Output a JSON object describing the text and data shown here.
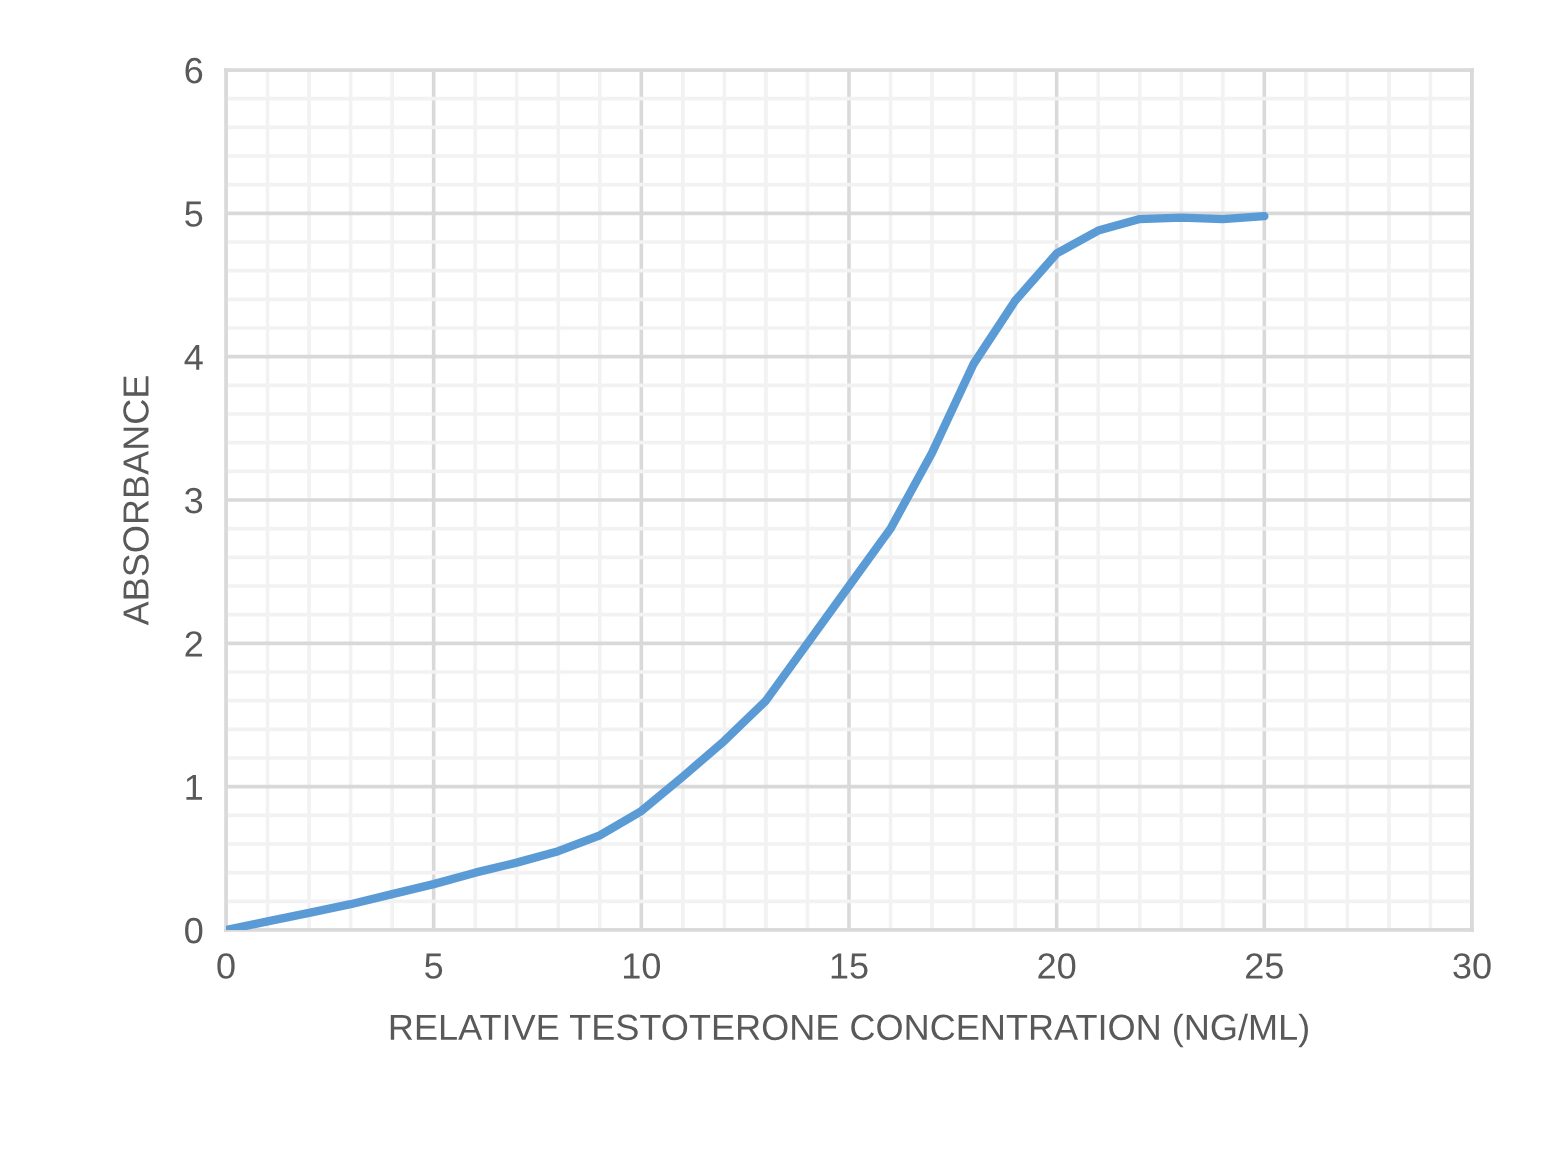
{
  "chart_data": {
    "type": "line",
    "xlabel": "RELATIVE TESTOTERONE CONCENTRATION (NG/ML)",
    "ylabel": "ABSORBANCE",
    "x": [
      0,
      1,
      2,
      3,
      4,
      5,
      6,
      7,
      8,
      9,
      10,
      11,
      12,
      13,
      14,
      15,
      16,
      17,
      18,
      19,
      20,
      21,
      22,
      23,
      24,
      25
    ],
    "series": [
      {
        "color": "#5b9bd5",
        "values": [
          0.0,
          0.06,
          0.12,
          0.18,
          0.25,
          0.32,
          0.4,
          0.47,
          0.55,
          0.66,
          0.83,
          1.07,
          1.32,
          1.6,
          2.0,
          2.4,
          2.8,
          3.33,
          3.95,
          4.39,
          4.72,
          4.88,
          4.96,
          4.97,
          4.96,
          4.98
        ]
      }
    ],
    "xlim": [
      0,
      30
    ],
    "xticks": [
      0,
      5,
      10,
      15,
      20,
      25,
      30
    ],
    "ylim": [
      0,
      6
    ],
    "yticks": [
      0,
      1,
      2,
      3,
      4,
      5,
      6
    ],
    "grid": true,
    "marker": "none",
    "line_style": "solid"
  }
}
